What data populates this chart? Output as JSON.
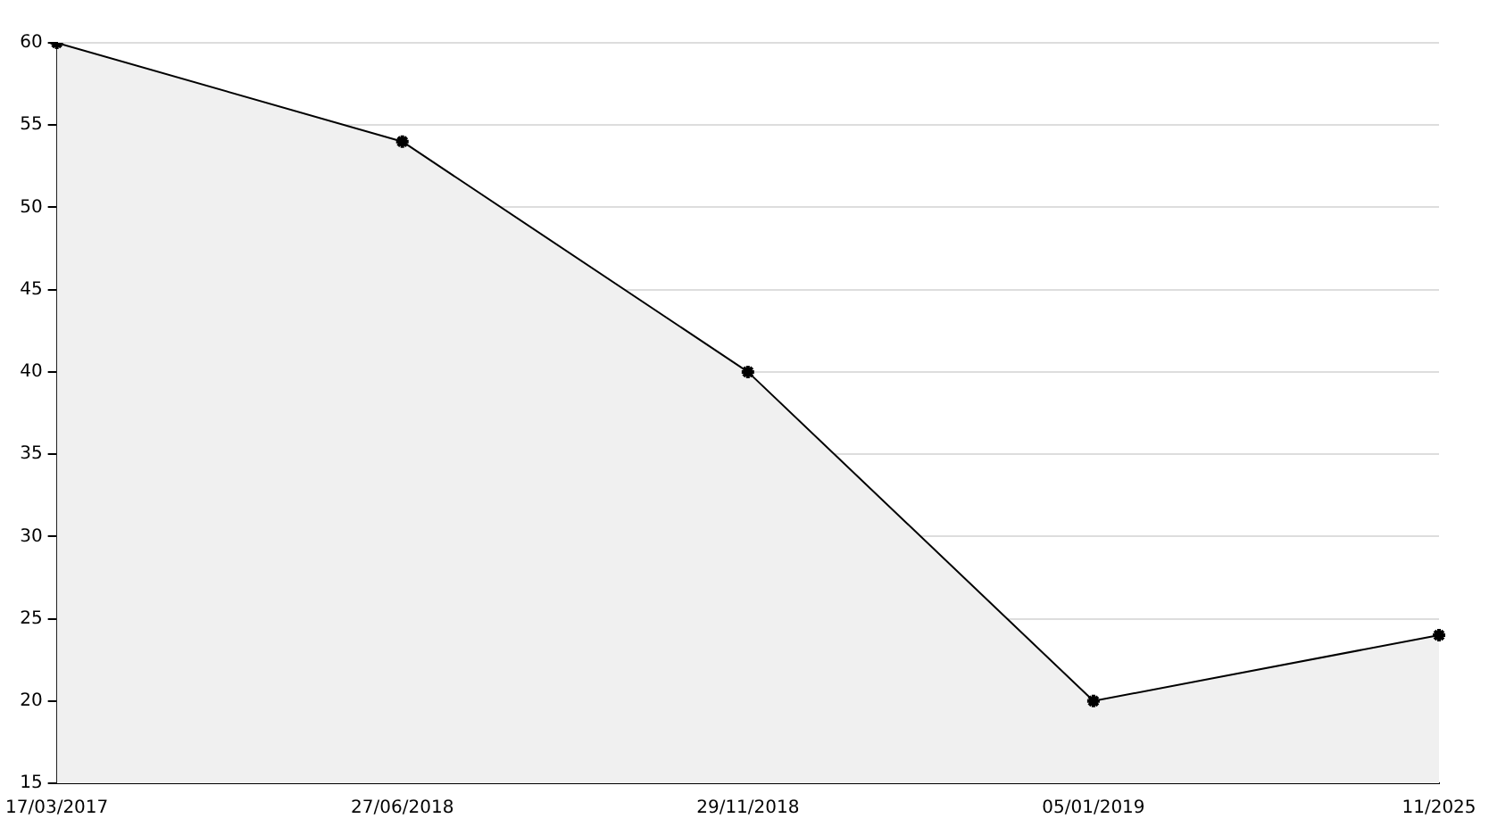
{
  "chart_data": {
    "type": "area",
    "categories": [
      "17/03/2017",
      "27/06/2018",
      "29/11/2018",
      "05/01/2019",
      "11/2025"
    ],
    "series": [
      {
        "color": "#000000",
        "values": [
          60,
          54,
          40,
          20,
          24
        ]
      }
    ],
    "ylim": [
      15,
      60
    ],
    "yticks": [
      15,
      20,
      25,
      30,
      35,
      40,
      45,
      50,
      55,
      60
    ],
    "grid": "y",
    "marker": "cross",
    "line_style": "solid",
    "legend": false
  }
}
